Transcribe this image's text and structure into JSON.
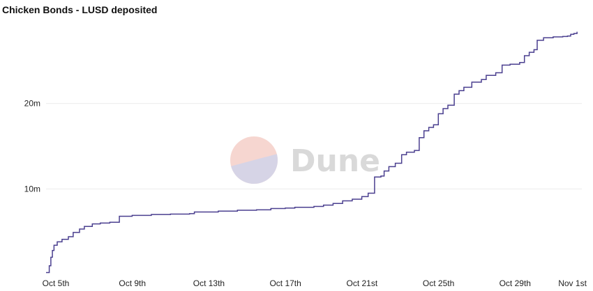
{
  "title": "Chicken Bonds - LUSD deposited",
  "watermark": {
    "text": "Dune",
    "color": "#d9d9d9",
    "logo_top_color": "#f6d6d0",
    "logo_bottom_color": "#d6d4e6"
  },
  "colors": {
    "line": "#4a3f8f",
    "grid": "#ececec"
  },
  "chart_data": {
    "type": "line",
    "title": "Chicken Bonds - LUSD deposited",
    "xlabel": "",
    "ylabel": "",
    "x_ticks": [
      {
        "value": "2022-10-05",
        "label": "Oct 5th"
      },
      {
        "value": "2022-10-09",
        "label": "Oct 9th"
      },
      {
        "value": "2022-10-13",
        "label": "Oct 13th"
      },
      {
        "value": "2022-10-17",
        "label": "Oct 17th"
      },
      {
        "value": "2022-10-21",
        "label": "Oct 21st"
      },
      {
        "value": "2022-10-25",
        "label": "Oct 25th"
      },
      {
        "value": "2022-10-29",
        "label": "Oct 29th"
      },
      {
        "value": "2022-11-01",
        "label": "Nov 1st"
      }
    ],
    "y_ticks": [
      {
        "value": 10000000,
        "label": "10m"
      },
      {
        "value": 20000000,
        "label": "20m"
      }
    ],
    "xlim": [
      "2022-10-05",
      "2022-11-02"
    ],
    "ylim": [
      0,
      30000000
    ],
    "grid": true,
    "series": [
      {
        "step": true,
        "points": [
          [
            "2022-10-05T00:00",
            0.2
          ],
          [
            "2022-10-05T04:00",
            1.0
          ],
          [
            "2022-10-05T06:00",
            2.0
          ],
          [
            "2022-10-05T08:00",
            2.8
          ],
          [
            "2022-10-05T10:00",
            3.4
          ],
          [
            "2022-10-05T14:00",
            3.8
          ],
          [
            "2022-10-05T20:00",
            4.1
          ],
          [
            "2022-10-06T04:00",
            4.4
          ],
          [
            "2022-10-06T10:00",
            4.9
          ],
          [
            "2022-10-06T18:00",
            5.3
          ],
          [
            "2022-10-07T00:00",
            5.6
          ],
          [
            "2022-10-07T10:00",
            5.9
          ],
          [
            "2022-10-07T20:00",
            6.0
          ],
          [
            "2022-10-08T08:00",
            6.1
          ],
          [
            "2022-10-08T20:00",
            6.8
          ],
          [
            "2022-10-09T12:00",
            6.9
          ],
          [
            "2022-10-10T12:00",
            7.0
          ],
          [
            "2022-10-11T12:00",
            7.05
          ],
          [
            "2022-10-12T12:00",
            7.1
          ],
          [
            "2022-10-12T18:00",
            7.3
          ],
          [
            "2022-10-14T00:00",
            7.4
          ],
          [
            "2022-10-15T00:00",
            7.5
          ],
          [
            "2022-10-16T00:00",
            7.55
          ],
          [
            "2022-10-16T18:00",
            7.7
          ],
          [
            "2022-10-17T12:00",
            7.75
          ],
          [
            "2022-10-18T00:00",
            7.85
          ],
          [
            "2022-10-19T00:00",
            7.95
          ],
          [
            "2022-10-19T12:00",
            8.1
          ],
          [
            "2022-10-20T00:00",
            8.3
          ],
          [
            "2022-10-20T12:00",
            8.6
          ],
          [
            "2022-10-21T00:00",
            8.8
          ],
          [
            "2022-10-21T12:00",
            9.1
          ],
          [
            "2022-10-21T20:00",
            9.5
          ],
          [
            "2022-10-22T04:00",
            11.4
          ],
          [
            "2022-10-22T12:00",
            11.5
          ],
          [
            "2022-10-22T16:00",
            12.1
          ],
          [
            "2022-10-22T22:00",
            12.6
          ],
          [
            "2022-10-23T06:00",
            13.0
          ],
          [
            "2022-10-23T14:00",
            14.0
          ],
          [
            "2022-10-23T20:00",
            14.3
          ],
          [
            "2022-10-24T06:00",
            14.5
          ],
          [
            "2022-10-24T12:00",
            16.0
          ],
          [
            "2022-10-24T18:00",
            16.8
          ],
          [
            "2022-10-25T00:00",
            17.2
          ],
          [
            "2022-10-25T06:00",
            17.5
          ],
          [
            "2022-10-25T12:00",
            18.8
          ],
          [
            "2022-10-25T18:00",
            19.4
          ],
          [
            "2022-10-26T00:00",
            19.8
          ],
          [
            "2022-10-26T08:00",
            21.1
          ],
          [
            "2022-10-26T14:00",
            21.5
          ],
          [
            "2022-10-26T20:00",
            21.9
          ],
          [
            "2022-10-27T06:00",
            22.5
          ],
          [
            "2022-10-27T18:00",
            22.8
          ],
          [
            "2022-10-28T00:00",
            23.3
          ],
          [
            "2022-10-28T12:00",
            23.6
          ],
          [
            "2022-10-28T20:00",
            24.5
          ],
          [
            "2022-10-29T06:00",
            24.6
          ],
          [
            "2022-10-29T18:00",
            24.8
          ],
          [
            "2022-10-30T00:00",
            25.6
          ],
          [
            "2022-10-30T06:00",
            26.0
          ],
          [
            "2022-10-30T12:00",
            26.3
          ],
          [
            "2022-10-30T16:00",
            27.4
          ],
          [
            "2022-10-31T00:00",
            27.7
          ],
          [
            "2022-10-31T12:00",
            27.8
          ],
          [
            "2022-11-01T00:00",
            27.85
          ],
          [
            "2022-11-01T06:00",
            27.9
          ],
          [
            "2022-11-01T10:00",
            28.1
          ],
          [
            "2022-11-01T14:00",
            28.2
          ],
          [
            "2022-11-01T18:00",
            28.4
          ]
        ]
      }
    ]
  }
}
